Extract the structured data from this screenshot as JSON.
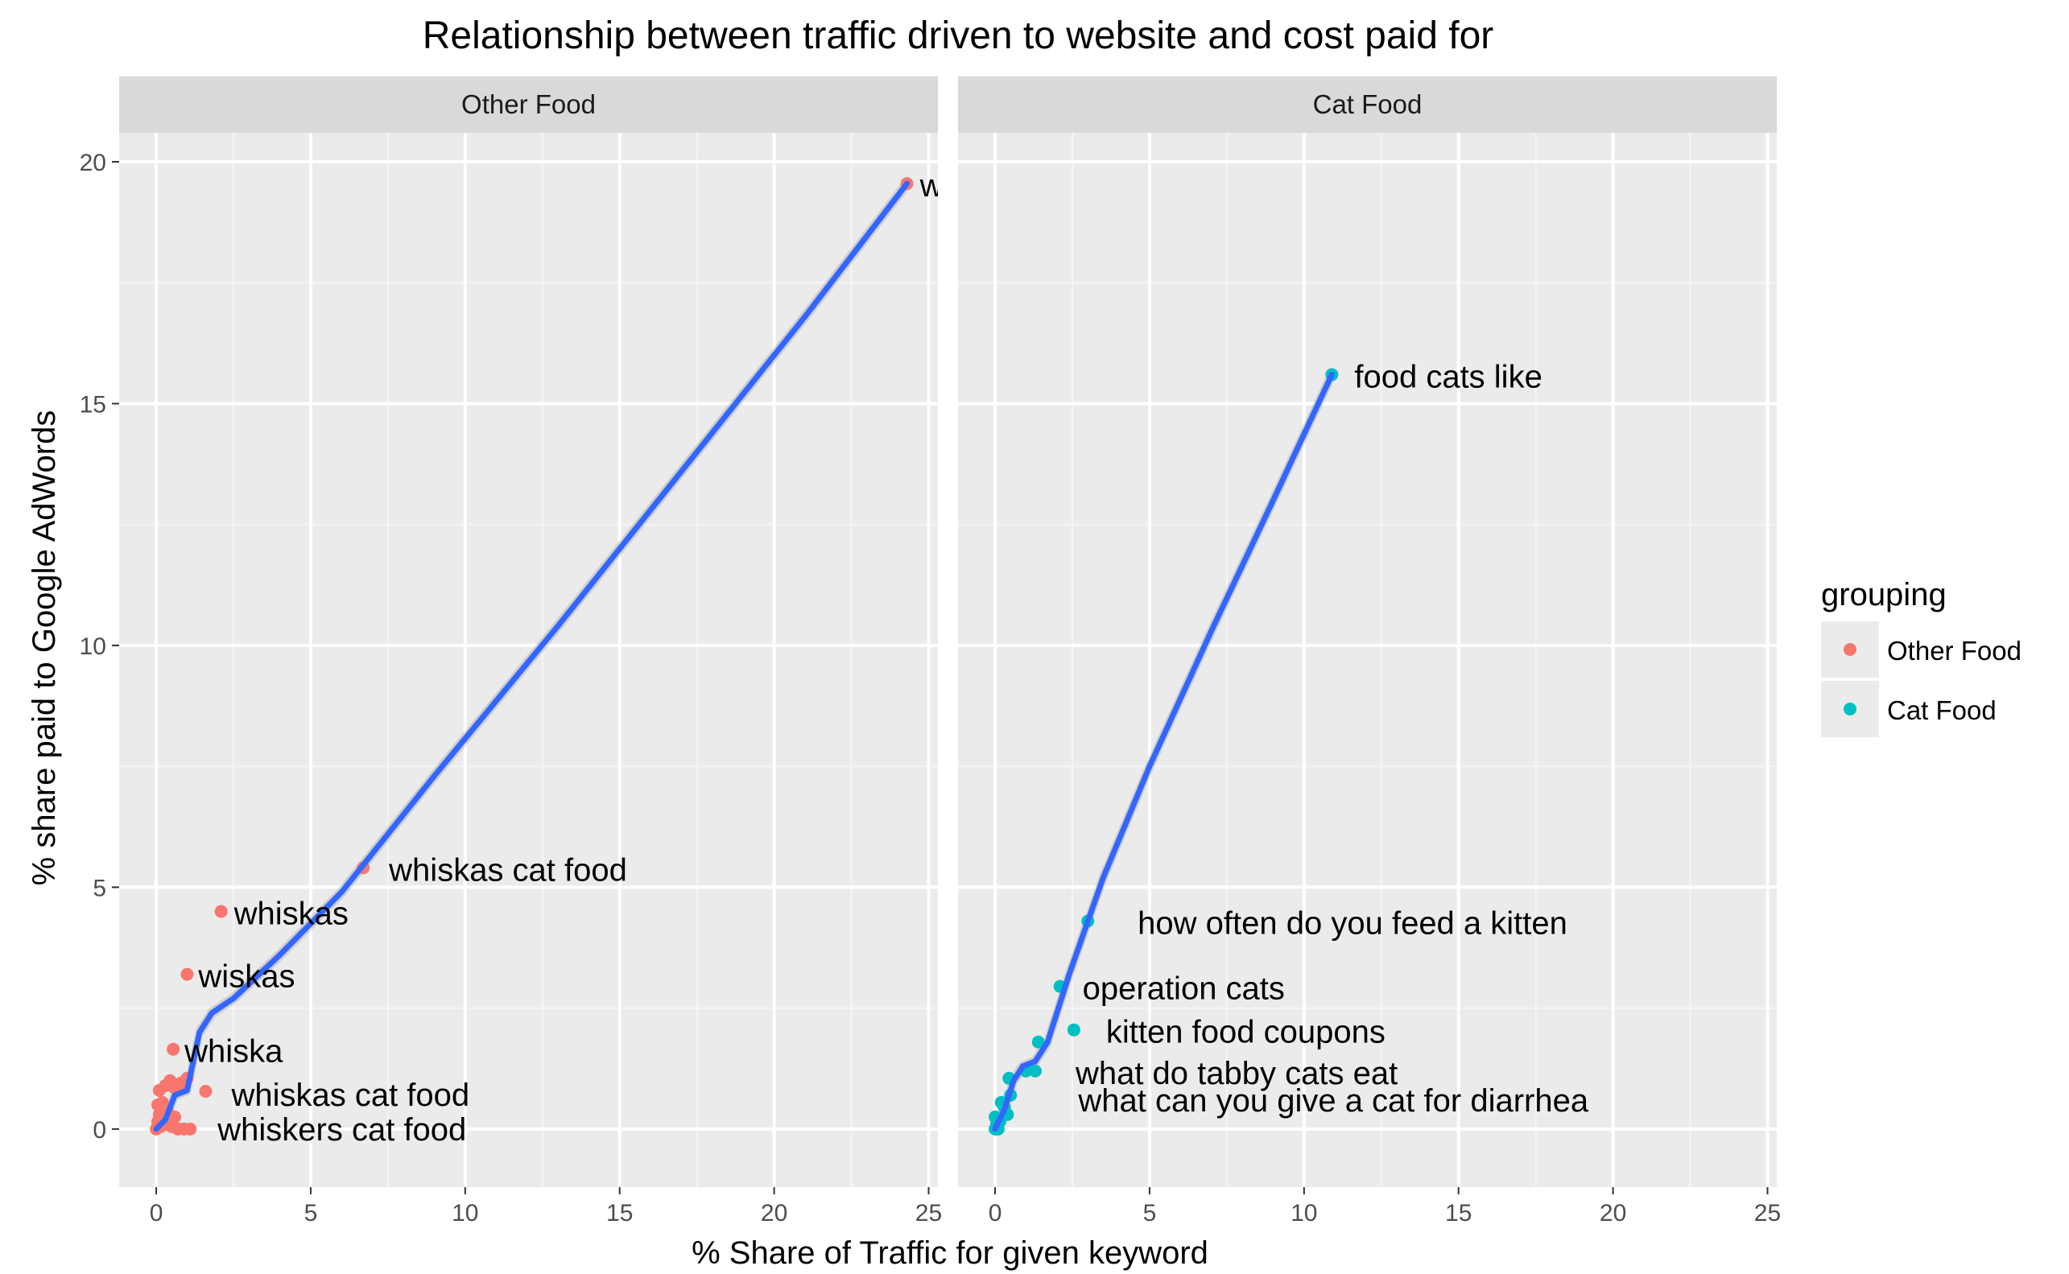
{
  "chart_data": {
    "type": "scatter",
    "title": "Relationship between traffic driven to website and cost paid for",
    "xlabel": "% Share of Traffic for given keyword",
    "ylabel": "% share paid to Google AdWords",
    "xlim": [
      -1.2,
      25.3
    ],
    "ylim": [
      -1.2,
      20.6
    ],
    "x_ticks": [
      0,
      5,
      10,
      15,
      20,
      25
    ],
    "y_ticks": [
      0,
      5,
      10,
      15,
      20
    ],
    "grid": true,
    "legend": {
      "title": "grouping",
      "position": "right",
      "entries": [
        {
          "label": "Other Food",
          "color": "#F8766D"
        },
        {
          "label": "Cat Food",
          "color": "#00BFC4"
        }
      ]
    },
    "smooth_color": "#3366FF",
    "panels": [
      {
        "strip": "Other Food",
        "color": "#F8766D",
        "points": [
          {
            "x": 24.3,
            "y": 19.55,
            "label": "w"
          },
          {
            "x": 6.7,
            "y": 5.4,
            "label": "whiskas cat food"
          },
          {
            "x": 2.1,
            "y": 4.5,
            "label": "whiskas"
          },
          {
            "x": 1.0,
            "y": 3.2,
            "label": "wiskas"
          },
          {
            "x": 0.55,
            "y": 1.65,
            "label": "whiska"
          },
          {
            "x": 1.6,
            "y": 0.78,
            "label": "whiskas cat food"
          },
          {
            "x": 1.1,
            "y": 0.0,
            "label": "whiskers cat food"
          },
          {
            "x": 0.0,
            "y": 0.0
          },
          {
            "x": 0.05,
            "y": 0.15
          },
          {
            "x": 0.1,
            "y": 0.3
          },
          {
            "x": 0.05,
            "y": 0.5
          },
          {
            "x": 0.1,
            "y": 0.8
          },
          {
            "x": 0.2,
            "y": 0.55
          },
          {
            "x": 0.3,
            "y": 0.9
          },
          {
            "x": 0.4,
            "y": 0.2
          },
          {
            "x": 0.45,
            "y": 1.0
          },
          {
            "x": 0.5,
            "y": 0.05
          },
          {
            "x": 0.6,
            "y": 0.85
          },
          {
            "x": 0.7,
            "y": 0.0
          },
          {
            "x": 0.8,
            "y": 0.95
          },
          {
            "x": 0.9,
            "y": 0.0
          },
          {
            "x": 1.0,
            "y": 1.05
          },
          {
            "x": 0.25,
            "y": 0.1
          },
          {
            "x": 0.35,
            "y": 0.4
          },
          {
            "x": 0.15,
            "y": 0.05
          },
          {
            "x": 0.6,
            "y": 0.25
          }
        ],
        "smooth": [
          [
            0.0,
            0.0
          ],
          [
            0.3,
            0.2
          ],
          [
            0.6,
            0.7
          ],
          [
            1.0,
            0.8
          ],
          [
            1.4,
            2.0
          ],
          [
            1.8,
            2.4
          ],
          [
            2.5,
            2.7
          ],
          [
            4.0,
            3.6
          ],
          [
            6.0,
            4.9
          ],
          [
            9.0,
            7.3
          ],
          [
            13.0,
            10.4
          ],
          [
            17.0,
            13.6
          ],
          [
            21.0,
            16.8
          ],
          [
            24.3,
            19.55
          ]
        ]
      },
      {
        "strip": "Cat Food",
        "color": "#00BFC4",
        "points": [
          {
            "x": 10.9,
            "y": 15.6,
            "label": "food cats like"
          },
          {
            "x": 3.0,
            "y": 4.3,
            "label": "how often do you feed a kitten"
          },
          {
            "x": 2.1,
            "y": 2.95,
            "label": "operation cats"
          },
          {
            "x": 2.55,
            "y": 2.05,
            "label": "kitten food coupons"
          },
          {
            "x": 1.3,
            "y": 1.2,
            "label": "what do tabby cats eat"
          },
          {
            "x": 0.4,
            "y": 0.3,
            "label": "what can you give a cat for diarrhea"
          },
          {
            "x": 1.4,
            "y": 1.8
          },
          {
            "x": 1.0,
            "y": 1.2
          },
          {
            "x": 0.45,
            "y": 1.05
          },
          {
            "x": 0.5,
            "y": 0.7
          },
          {
            "x": 0.2,
            "y": 0.55
          },
          {
            "x": 0.0,
            "y": 0.25
          },
          {
            "x": 0.1,
            "y": 0.0
          },
          {
            "x": 0.05,
            "y": 0.1
          },
          {
            "x": 0.0,
            "y": 0.0
          },
          {
            "x": 0.3,
            "y": 0.45
          },
          {
            "x": 0.15,
            "y": 0.15
          }
        ],
        "smooth": [
          [
            0.0,
            0.0
          ],
          [
            0.3,
            0.4
          ],
          [
            0.6,
            1.0
          ],
          [
            0.9,
            1.3
          ],
          [
            1.3,
            1.4
          ],
          [
            1.7,
            1.8
          ],
          [
            2.4,
            3.2
          ],
          [
            3.5,
            5.2
          ],
          [
            5.0,
            7.5
          ],
          [
            7.0,
            10.3
          ],
          [
            9.0,
            13.0
          ],
          [
            10.9,
            15.6
          ]
        ]
      }
    ]
  }
}
